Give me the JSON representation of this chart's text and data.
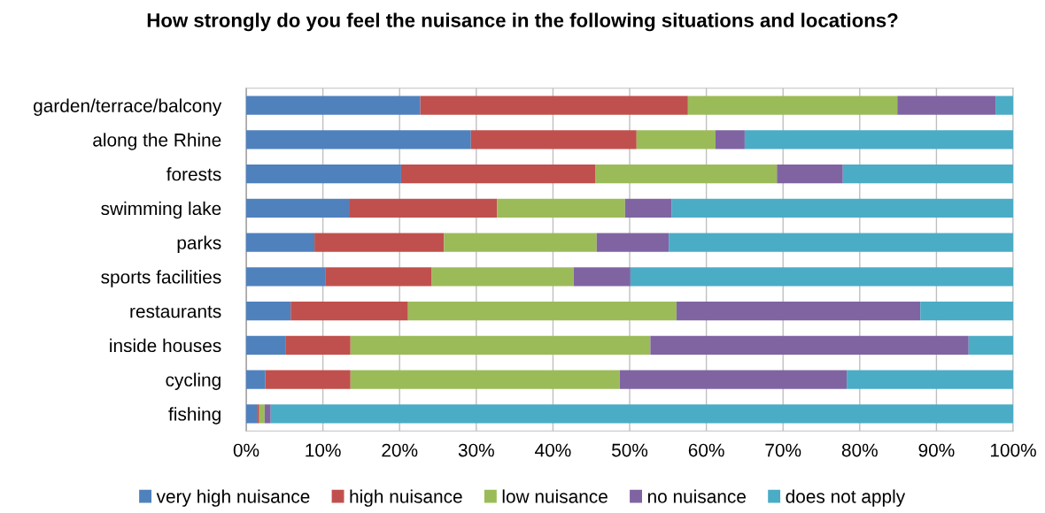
{
  "chart_data": {
    "type": "bar",
    "orientation": "horizontal",
    "stacked": true,
    "title": "How strongly do you feel the nuisance in the following situations and locations?",
    "categories": [
      "garden/terrace/balcony",
      "along the Rhine",
      "forests",
      "swimming lake",
      "parks",
      "sports facilities",
      "restaurants",
      "inside houses",
      "cycling",
      "fishing"
    ],
    "series": [
      {
        "name": "very high nuisance",
        "color": "#4f81bd",
        "values": [
          22.7,
          29.3,
          20.2,
          13.4,
          8.9,
          10.3,
          5.8,
          5.1,
          2.5,
          1.4
        ]
      },
      {
        "name": "high nuisance",
        "color": "#c0504d",
        "values": [
          34.9,
          21.6,
          25.3,
          19.3,
          16.9,
          13.9,
          15.3,
          8.5,
          11.1,
          0.3
        ]
      },
      {
        "name": "low nuisance",
        "color": "#9bbb59",
        "values": [
          27.3,
          10.3,
          23.7,
          16.7,
          19.9,
          18.5,
          35.0,
          39.1,
          35.1,
          0.7
        ]
      },
      {
        "name": "no nuisance",
        "color": "#8064a2",
        "values": [
          12.8,
          3.8,
          8.6,
          6.1,
          9.4,
          7.4,
          31.8,
          41.5,
          29.6,
          0.8
        ]
      },
      {
        "name": "does not apply",
        "color": "#4bacc6",
        "values": [
          2.3,
          35.0,
          22.2,
          44.5,
          44.9,
          49.9,
          12.1,
          5.8,
          21.7,
          96.8
        ]
      }
    ],
    "xlim": [
      0,
      100
    ],
    "xticks": [
      {
        "value": 0,
        "label": "0%"
      },
      {
        "value": 10,
        "label": "10%"
      },
      {
        "value": 20,
        "label": "20%"
      },
      {
        "value": 30,
        "label": "30%"
      },
      {
        "value": 40,
        "label": "40%"
      },
      {
        "value": 50,
        "label": "50%"
      },
      {
        "value": 60,
        "label": "60%"
      },
      {
        "value": 70,
        "label": "70%"
      },
      {
        "value": 80,
        "label": "80%"
      },
      {
        "value": 90,
        "label": "90%"
      },
      {
        "value": 100,
        "label": "100%"
      }
    ],
    "grid": "x",
    "legend": "bottom"
  }
}
